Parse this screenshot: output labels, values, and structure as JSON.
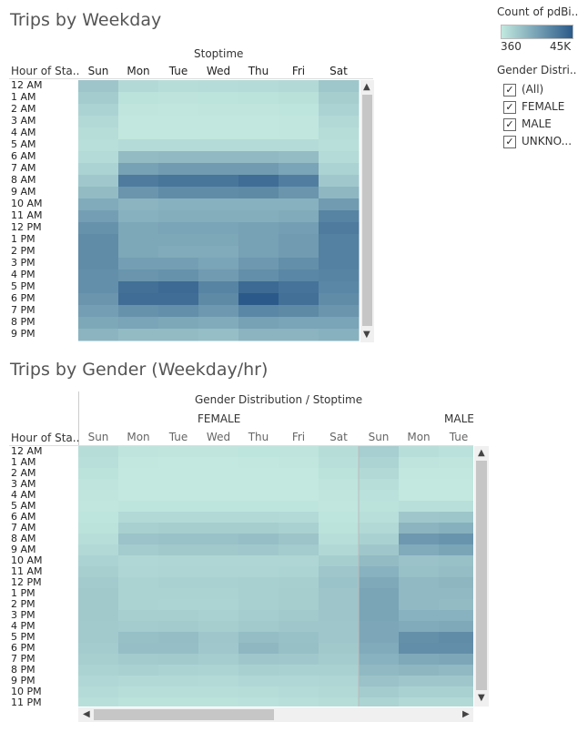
{
  "chart_data": [
    {
      "type": "heatmap",
      "title": "Trips by Weekday",
      "column_header": "Stoptime",
      "row_header": "Hour of Sta..",
      "columns": [
        "Sun",
        "Mon",
        "Tue",
        "Wed",
        "Thu",
        "Fri",
        "Sat"
      ],
      "rows": [
        "12 AM",
        "1 AM",
        "2 AM",
        "3 AM",
        "4 AM",
        "5 AM",
        "6 AM",
        "7 AM",
        "8 AM",
        "9 AM",
        "10 AM",
        "11 AM",
        "12 PM",
        "1 PM",
        "2 PM",
        "3 PM",
        "4 PM",
        "5 PM",
        "6 PM",
        "7 PM",
        "8 PM",
        "9 PM"
      ],
      "values": [
        [
          9000,
          3500,
          2500,
          2800,
          3000,
          3500,
          8500
        ],
        [
          7000,
          1500,
          1200,
          1300,
          1500,
          1800,
          6500
        ],
        [
          5000,
          800,
          700,
          750,
          800,
          900,
          5000
        ],
        [
          3500,
          500,
          450,
          480,
          500,
          600,
          3500
        ],
        [
          2500,
          500,
          450,
          480,
          500,
          600,
          2500
        ],
        [
          2000,
          3000,
          3000,
          3000,
          3000,
          3000,
          2000
        ],
        [
          3000,
          12000,
          12500,
          12500,
          12500,
          11500,
          3000
        ],
        [
          5000,
          20000,
          22000,
          22000,
          22000,
          19000,
          5000
        ],
        [
          8000,
          33000,
          35000,
          35000,
          38000,
          32000,
          8000
        ],
        [
          12000,
          24000,
          27000,
          27000,
          28000,
          24000,
          13000
        ],
        [
          17000,
          14000,
          15000,
          15000,
          15000,
          15000,
          22000
        ],
        [
          21000,
          15000,
          16000,
          16000,
          16000,
          17000,
          30000
        ],
        [
          25000,
          18000,
          19000,
          19000,
          20000,
          21000,
          33000
        ],
        [
          27000,
          18000,
          18000,
          18000,
          20000,
          22000,
          31000
        ],
        [
          27000,
          18000,
          17000,
          17000,
          20000,
          22000,
          31000
        ],
        [
          27000,
          21000,
          21000,
          19000,
          23000,
          26000,
          31000
        ],
        [
          26000,
          24000,
          25000,
          22000,
          26000,
          29000,
          30000
        ],
        [
          26000,
          37000,
          39000,
          30000,
          39000,
          36000,
          29000
        ],
        [
          24000,
          38000,
          38000,
          28000,
          45000,
          37000,
          27000
        ],
        [
          21000,
          25000,
          26000,
          23000,
          29000,
          28000,
          24000
        ],
        [
          18000,
          19000,
          18000,
          17000,
          20000,
          19000,
          19000
        ],
        [
          14000,
          12000,
          12000,
          11000,
          14000,
          14000,
          15000
        ]
      ],
      "color_range": [
        360,
        45000
      ]
    },
    {
      "type": "heatmap",
      "title": "Trips by Gender (Weekday/hr)",
      "column_header": "Gender Distribution / Stoptime",
      "row_header": "Hour of Sta..",
      "groups": [
        {
          "name": "FEMALE",
          "columns": [
            "Sun",
            "Mon",
            "Tue",
            "Wed",
            "Thu",
            "Fri",
            "Sat"
          ],
          "values": [
            [
              2500,
              1000,
              800,
              800,
              900,
              1000,
              2500
            ],
            [
              2000,
              500,
              400,
              400,
              500,
              600,
              2000
            ],
            [
              1500,
              300,
              250,
              250,
              300,
              350,
              1500
            ],
            [
              1000,
              200,
              180,
              180,
              200,
              220,
              1000
            ],
            [
              800,
              200,
              180,
              180,
              200,
              220,
              800
            ],
            [
              600,
              900,
              900,
              900,
              900,
              900,
              600
            ],
            [
              900,
              3500,
              3600,
              3600,
              3600,
              3300,
              900
            ],
            [
              1400,
              6000,
              6500,
              6500,
              6500,
              5600,
              1500
            ],
            [
              2300,
              9500,
              10000,
              10000,
              11000,
              9300,
              2300
            ],
            [
              3500,
              7000,
              7800,
              7800,
              8200,
              7000,
              3800
            ],
            [
              5000,
              4000,
              4300,
              4300,
              4300,
              4300,
              6400
            ],
            [
              6100,
              4300,
              4600,
              4600,
              4600,
              4900,
              8700
            ],
            [
              7300,
              5200,
              5500,
              5500,
              5800,
              6100,
              9600
            ],
            [
              7800,
              5200,
              5200,
              5200,
              5800,
              6400,
              9000
            ],
            [
              7800,
              5200,
              4900,
              4900,
              5800,
              6400,
              9000
            ],
            [
              7800,
              6100,
              6100,
              5500,
              6700,
              7500,
              9000
            ],
            [
              7500,
              7000,
              7300,
              6400,
              7500,
              8400,
              8700
            ],
            [
              7500,
              10700,
              11300,
              8700,
              11300,
              10400,
              8400
            ],
            [
              7000,
              11000,
              11000,
              8100,
              13000,
              10700,
              7800
            ],
            [
              6100,
              7300,
              7500,
              6700,
              8400,
              8100,
              7000
            ],
            [
              5200,
              5500,
              5200,
              4900,
              5800,
              5500,
              5500
            ],
            [
              4100,
              3500,
              3500,
              3200,
              4100,
              4100,
              4300
            ],
            [
              3000,
              2300,
              2300,
              2300,
              2600,
              3000,
              3500
            ],
            [
              2000,
              1500,
              1500,
              1500,
              1700,
              2000,
              2600
            ]
          ]
        },
        {
          "name": "MALE",
          "columns": [
            "Sun",
            "Mon",
            "Tue"
          ],
          "values": [
            [
              6300,
              2400,
              1700
            ],
            [
              4900,
              1000,
              800
            ],
            [
              3500,
              550,
              480
            ],
            [
              2400,
              350,
              310
            ],
            [
              1700,
              350,
              310
            ],
            [
              1400,
              2100,
              2100
            ],
            [
              2100,
              8400,
              8800
            ],
            [
              3500,
              14000,
              15400
            ],
            [
              5600,
              23100,
              24500
            ],
            [
              8400,
              16800,
              18900
            ],
            [
              11900,
              9800,
              10500
            ],
            [
              14700,
              10500,
              11200
            ],
            [
              17500,
              12600,
              13300
            ],
            [
              18900,
              12600,
              12600
            ],
            [
              18900,
              12600,
              11900
            ],
            [
              18900,
              14700,
              14700
            ],
            [
              18200,
              16800,
              17500
            ],
            [
              18200,
              25900,
              27300
            ],
            [
              16800,
              26600,
              26600
            ],
            [
              14700,
              17500,
              18200
            ],
            [
              12600,
              13300,
              12600
            ],
            [
              9800,
              8400,
              8400
            ],
            [
              7000,
              5600,
              5600
            ],
            [
              4900,
              3500,
              3500
            ]
          ]
        }
      ],
      "rows": [
        "12 AM",
        "1 AM",
        "2 AM",
        "3 AM",
        "4 AM",
        "5 AM",
        "6 AM",
        "7 AM",
        "8 AM",
        "9 AM",
        "10 AM",
        "11 AM",
        "12 PM",
        "1 PM",
        "2 PM",
        "3 PM",
        "4 PM",
        "5 PM",
        "6 PM",
        "7 PM",
        "8 PM",
        "9 PM",
        "10 PM",
        "11 PM"
      ],
      "color_range": [
        360,
        45000
      ]
    }
  ],
  "legend": {
    "title": "Count of pdBi..",
    "min_label": "360",
    "max_label": "45K",
    "color_low": "#c2e8df",
    "color_high": "#2b5a8a"
  },
  "filter": {
    "title": "Gender Distri..",
    "options": [
      {
        "label": "(All)",
        "checked": true
      },
      {
        "label": "FEMALE",
        "checked": true
      },
      {
        "label": "MALE",
        "checked": true
      },
      {
        "label": "UNKNO...",
        "checked": true
      }
    ]
  },
  "icons": {
    "scroll_up": "▲",
    "scroll_down": "▼",
    "scroll_left": "◀",
    "scroll_right": "▶",
    "check": "✓"
  }
}
